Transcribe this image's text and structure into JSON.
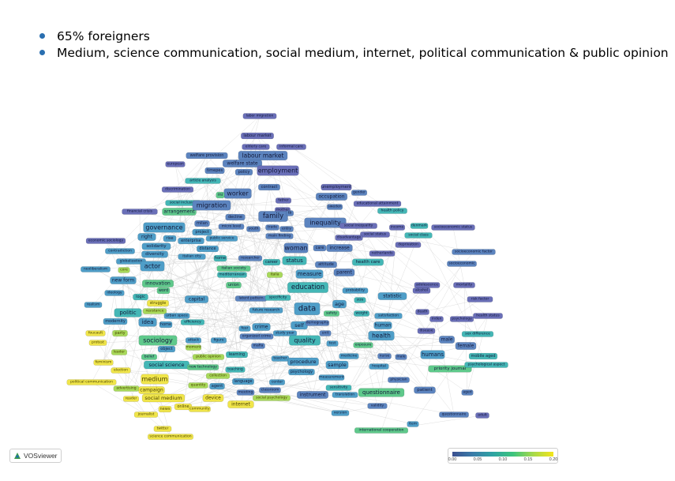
{
  "bullets": [
    "65% foreigners",
    "Medium, science communication, social medium, internet, political communication & public opinion"
  ],
  "tool": "VOSviewer",
  "scale": {
    "ticks": [
      "0.00",
      "0.05",
      "0.10",
      "0.15",
      "0.20"
    ]
  },
  "colors": {
    "c0": "#6a6fb8",
    "c1": "#5c84bf",
    "c2": "#4f9ec8",
    "c3": "#44b7b6",
    "c4": "#5fc98b",
    "c5": "#a8d95a",
    "c6": "#f0e54a",
    "edge": "#c9c9c9"
  },
  "terms": [
    {
      "t": "labor migration",
      "c": 0
    },
    {
      "t": "labour market",
      "c": 0
    },
    {
      "t": "elderly care",
      "c": 0
    },
    {
      "t": "informal care",
      "c": 0
    },
    {
      "t": "welfare provision",
      "c": 1
    },
    {
      "t": "welfare state",
      "c": 1
    },
    {
      "t": "labour market",
      "c": 1
    },
    {
      "t": "european",
      "c": 0
    },
    {
      "t": "employment",
      "c": 0
    },
    {
      "t": "timepes",
      "c": 1
    },
    {
      "t": "policy",
      "c": 1
    },
    {
      "t": "article analysis",
      "c": 3
    },
    {
      "t": "contract",
      "c": 1
    },
    {
      "t": "discrimination",
      "c": 0
    },
    {
      "t": "worker",
      "c": 1
    },
    {
      "t": "unemployment",
      "c": 0
    },
    {
      "t": "occupation",
      "c": 1
    },
    {
      "t": "gender",
      "c": 1
    },
    {
      "t": "social inclusion",
      "c": 3
    },
    {
      "t": "mi",
      "c": 4
    },
    {
      "t": "father",
      "c": 0
    },
    {
      "t": "mother",
      "c": 0
    },
    {
      "t": "educational attainment",
      "c": 0
    },
    {
      "t": "health policy",
      "c": 3
    },
    {
      "t": "financial crisis",
      "c": 0
    },
    {
      "t": "arrangement",
      "c": 4
    },
    {
      "t": "migration",
      "c": 1
    },
    {
      "t": "sweden",
      "c": 1
    },
    {
      "t": "family",
      "c": 1
    },
    {
      "t": "decline",
      "c": 1
    },
    {
      "t": "milan",
      "c": 1
    },
    {
      "t": "tb",
      "c": 1
    },
    {
      "t": "inequality",
      "c": 1
    },
    {
      "t": "social inequality",
      "c": 0
    },
    {
      "t": "income",
      "c": 0
    },
    {
      "t": "denmark",
      "c": 3
    },
    {
      "t": "socioeconomic status",
      "c": 0
    },
    {
      "t": "governance",
      "c": 2
    },
    {
      "t": "project",
      "c": 2
    },
    {
      "t": "micro level",
      "c": 1
    },
    {
      "t": "youth",
      "c": 1
    },
    {
      "t": "trade",
      "c": 1
    },
    {
      "t": "social status",
      "c": 0
    },
    {
      "t": "social class",
      "c": 3
    },
    {
      "t": "economic sociology",
      "c": 0
    },
    {
      "t": "right",
      "c": 2
    },
    {
      "t": "rise",
      "c": 2
    },
    {
      "t": "enterprise",
      "c": 2
    },
    {
      "t": "public service",
      "c": 2
    },
    {
      "t": "main finding",
      "c": 1
    },
    {
      "t": "entry",
      "c": 1
    },
    {
      "t": "disadvantage",
      "c": 0
    },
    {
      "t": "deprivation",
      "c": 0
    },
    {
      "t": "contradiction",
      "c": 2
    },
    {
      "t": "solidarity",
      "c": 2
    },
    {
      "t": "distance",
      "c": 2
    },
    {
      "t": "woman",
      "c": 1
    },
    {
      "t": "care",
      "c": 1
    },
    {
      "t": "increase",
      "c": 1
    },
    {
      "t": "netherlands",
      "c": 0
    },
    {
      "t": "globalization",
      "c": 2
    },
    {
      "t": "diversity",
      "c": 2
    },
    {
      "t": "italian city",
      "c": 2
    },
    {
      "t": "home",
      "c": 3
    },
    {
      "t": "researcher",
      "c": 1
    },
    {
      "t": "career",
      "c": 3
    },
    {
      "t": "socioeconomic factor",
      "c": 1
    },
    {
      "t": "neoliberalism",
      "c": 2
    },
    {
      "t": "core",
      "c": 5
    },
    {
      "t": "actor",
      "c": 2
    },
    {
      "t": "italian society",
      "c": 4
    },
    {
      "t": "status",
      "c": 3
    },
    {
      "t": "attitude",
      "c": 1
    },
    {
      "t": "health care",
      "c": 3
    },
    {
      "t": "socioeconomic",
      "c": 1
    },
    {
      "t": "mediterranean",
      "c": 3
    },
    {
      "t": "italia",
      "c": 5
    },
    {
      "t": "measure",
      "c": 2
    },
    {
      "t": "parent",
      "c": 1
    },
    {
      "t": "new form",
      "c": 2
    },
    {
      "t": "innovation",
      "c": 4
    },
    {
      "t": "union",
      "c": 4
    },
    {
      "t": "education",
      "c": 3
    },
    {
      "t": "adolescence",
      "c": 0
    },
    {
      "t": "mortality",
      "c": 0
    },
    {
      "t": "ideology",
      "c": 2
    },
    {
      "t": "logic",
      "c": 3
    },
    {
      "t": "word",
      "c": 4
    },
    {
      "t": "probability",
      "c": 2
    },
    {
      "t": "alcohol",
      "c": 0
    },
    {
      "t": "realism",
      "c": 2
    },
    {
      "t": "struggle",
      "c": 6
    },
    {
      "t": "capital",
      "c": 2
    },
    {
      "t": "latent pattern",
      "c": 1
    },
    {
      "t": "specificity",
      "c": 3
    },
    {
      "t": "statistic",
      "c": 2
    },
    {
      "t": "risk factor",
      "c": 0
    },
    {
      "t": "age",
      "c": 2
    },
    {
      "t": "size",
      "c": 3
    },
    {
      "t": "politic",
      "c": 3
    },
    {
      "t": "resistance",
      "c": 5
    },
    {
      "t": "urban space",
      "c": 2
    },
    {
      "t": "future research",
      "c": 2
    },
    {
      "t": "data",
      "c": 2
    },
    {
      "t": "safety",
      "c": 4
    },
    {
      "t": "weight",
      "c": 3
    },
    {
      "t": "satisfaction",
      "c": 2
    },
    {
      "t": "death",
      "c": 0
    },
    {
      "t": "index",
      "c": 0
    },
    {
      "t": "psychology",
      "c": 0
    },
    {
      "t": "health status",
      "c": 0
    },
    {
      "t": "modernity",
      "c": 2
    },
    {
      "t": "idea",
      "c": 2
    },
    {
      "t": "home",
      "c": 2
    },
    {
      "t": "efficiency",
      "c": 3
    },
    {
      "t": "self",
      "c": 2
    },
    {
      "t": "demography",
      "c": 1
    },
    {
      "t": "human",
      "c": 2
    },
    {
      "t": "disease",
      "c": 0
    },
    {
      "t": "sex difference",
      "c": 3
    },
    {
      "t": "foucault",
      "c": 6
    },
    {
      "t": "party",
      "c": 5
    },
    {
      "t": "crime",
      "c": 2
    },
    {
      "t": "fear",
      "c": 2
    },
    {
      "t": "study year",
      "c": 2
    },
    {
      "t": "health",
      "c": 2
    },
    {
      "t": "male",
      "c": 1
    },
    {
      "t": "female",
      "c": 1
    },
    {
      "t": "sociology",
      "c": 4
    },
    {
      "t": "attack",
      "c": 2
    },
    {
      "t": "figure",
      "c": 2
    },
    {
      "t": "organized crime",
      "c": 1
    },
    {
      "t": "quality",
      "c": 3
    },
    {
      "t": "unit",
      "c": 1
    },
    {
      "t": "protest",
      "c": 6
    },
    {
      "t": "leader",
      "c": 5
    },
    {
      "t": "object",
      "c": 2
    },
    {
      "t": "moment",
      "c": 5
    },
    {
      "t": "mafia",
      "c": 1
    },
    {
      "t": "test",
      "c": 2
    },
    {
      "t": "exposure",
      "c": 4
    },
    {
      "t": "humans",
      "c": 2
    },
    {
      "t": "mobile aged",
      "c": 3
    },
    {
      "t": "public opinion",
      "c": 5
    },
    {
      "t": "learning",
      "c": 3
    },
    {
      "t": "teacher",
      "c": 2
    },
    {
      "t": "procedure",
      "c": 2
    },
    {
      "t": "medicine",
      "c": 2
    },
    {
      "t": "nurse",
      "c": 1
    },
    {
      "t": "male",
      "c": 1
    },
    {
      "t": "social science",
      "c": 3
    },
    {
      "t": "feminism",
      "c": 6
    },
    {
      "t": "belief",
      "c": 4
    },
    {
      "t": "new technology",
      "c": 4
    },
    {
      "t": "teaching",
      "c": 3
    },
    {
      "t": "psychology",
      "c": 2
    },
    {
      "t": "sample",
      "c": 2
    },
    {
      "t": "hospital",
      "c": 2
    },
    {
      "t": "priority journal",
      "c": 4
    },
    {
      "t": "psychological aspect",
      "c": 3
    },
    {
      "t": "election",
      "c": 6
    },
    {
      "t": "collection",
      "c": 5
    },
    {
      "t": "measurement",
      "c": 2
    },
    {
      "t": "physician",
      "c": 1
    },
    {
      "t": "political communication",
      "c": 6
    },
    {
      "t": "medium",
      "c": 6
    },
    {
      "t": "quantity",
      "c": 5
    },
    {
      "t": "language",
      "c": 2
    },
    {
      "t": "center",
      "c": 2
    },
    {
      "t": "sensitivity",
      "c": 3
    },
    {
      "t": "questionnaire",
      "c": 4
    },
    {
      "t": "agent",
      "c": 2
    },
    {
      "t": "advertising",
      "c": 5
    },
    {
      "t": "campaign",
      "c": 6
    },
    {
      "t": "meeting",
      "c": 1
    },
    {
      "t": "classroom",
      "c": 1
    },
    {
      "t": "instrument",
      "c": 1
    },
    {
      "t": "translation",
      "c": 2
    },
    {
      "t": "patient",
      "c": 1
    },
    {
      "t": "aged",
      "c": 1
    },
    {
      "t": "reader",
      "c": 6
    },
    {
      "t": "social medium",
      "c": 6
    },
    {
      "t": "device",
      "c": 6
    },
    {
      "t": "social psychology",
      "c": 5
    },
    {
      "t": "online",
      "c": 6
    },
    {
      "t": "internet",
      "c": 6
    },
    {
      "t": "community",
      "c": 6
    },
    {
      "t": "validity",
      "c": 1
    },
    {
      "t": "news",
      "c": 6
    },
    {
      "t": "journalist",
      "c": 6
    },
    {
      "t": "version",
      "c": 2
    },
    {
      "t": "questionnaire",
      "c": 1
    },
    {
      "t": "item",
      "c": 2
    },
    {
      "t": "adult",
      "c": 0
    },
    {
      "t": "twitter",
      "c": 6
    },
    {
      "t": "international cooperation",
      "c": 4
    },
    {
      "t": "science communication",
      "c": 6
    }
  ]
}
